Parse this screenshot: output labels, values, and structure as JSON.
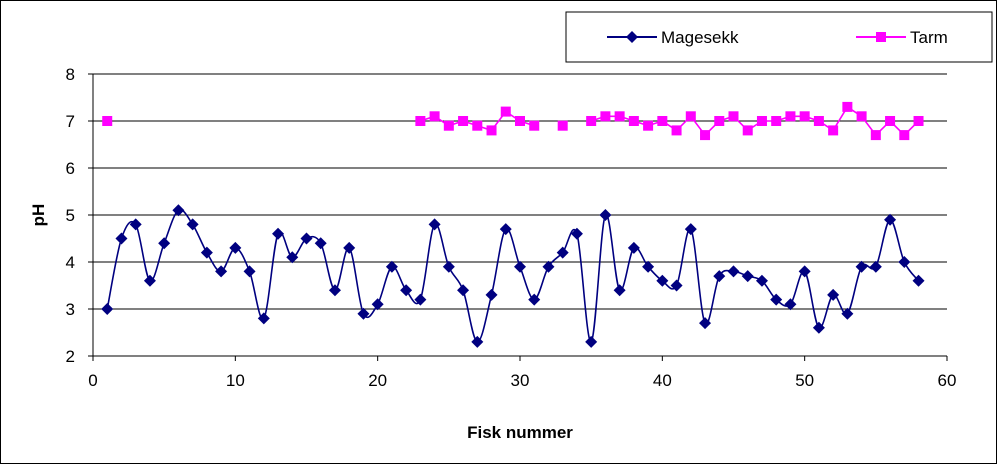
{
  "chart_data": {
    "type": "line",
    "title": "",
    "xlabel": "Fisk nummer",
    "ylabel": "pH",
    "xlim": [
      0,
      60
    ],
    "ylim": [
      2,
      8
    ],
    "x_ticks": [
      "0",
      "10",
      "20",
      "30",
      "40",
      "50",
      "60"
    ],
    "y_ticks": [
      "2",
      "3",
      "4",
      "5",
      "6",
      "7",
      "8"
    ],
    "grid": "horizontal",
    "legend_position": "top-right",
    "series": [
      {
        "name": "Magesekk",
        "color": "#000080",
        "marker": "diamond",
        "smooth": true,
        "points": [
          [
            1,
            3.0
          ],
          [
            2,
            4.5
          ],
          [
            3,
            4.8
          ],
          [
            4,
            3.6
          ],
          [
            5,
            4.4
          ],
          [
            6,
            5.1
          ],
          [
            7,
            4.8
          ],
          [
            8,
            4.2
          ],
          [
            9,
            3.8
          ],
          [
            10,
            4.3
          ],
          [
            11,
            3.8
          ],
          [
            12,
            2.8
          ],
          [
            13,
            4.6
          ],
          [
            14,
            4.1
          ],
          [
            15,
            4.5
          ],
          [
            16,
            4.4
          ],
          [
            17,
            3.4
          ],
          [
            18,
            4.3
          ],
          [
            19,
            2.9
          ],
          [
            20,
            3.1
          ],
          [
            21,
            3.9
          ],
          [
            22,
            3.4
          ],
          [
            23,
            3.2
          ],
          [
            24,
            4.8
          ],
          [
            25,
            3.9
          ],
          [
            26,
            3.4
          ],
          [
            27,
            2.3
          ],
          [
            28,
            3.3
          ],
          [
            29,
            4.7
          ],
          [
            30,
            3.9
          ],
          [
            31,
            3.2
          ],
          [
            32,
            3.9
          ],
          [
            33,
            4.2
          ],
          [
            34,
            4.6
          ],
          [
            35,
            2.3
          ],
          [
            36,
            5.0
          ],
          [
            37,
            3.4
          ],
          [
            38,
            4.3
          ],
          [
            39,
            3.9
          ],
          [
            40,
            3.6
          ],
          [
            41,
            3.5
          ],
          [
            42,
            4.7
          ],
          [
            43,
            2.7
          ],
          [
            44,
            3.7
          ],
          [
            45,
            3.8
          ],
          [
            46,
            3.7
          ],
          [
            47,
            3.6
          ],
          [
            48,
            3.2
          ],
          [
            49,
            3.1
          ],
          [
            50,
            3.8
          ],
          [
            51,
            2.6
          ],
          [
            52,
            3.3
          ],
          [
            53,
            2.9
          ],
          [
            54,
            3.9
          ],
          [
            55,
            3.9
          ],
          [
            56,
            4.9
          ],
          [
            57,
            4.0
          ],
          [
            58,
            3.6
          ]
        ]
      },
      {
        "name": "Tarm",
        "color": "#ff00ff",
        "marker": "square",
        "smooth": false,
        "points": [
          [
            1,
            7.0
          ],
          [
            23,
            7.0
          ],
          [
            24,
            7.1
          ],
          [
            25,
            6.9
          ],
          [
            26,
            7.0
          ],
          [
            27,
            6.9
          ],
          [
            28,
            6.8
          ],
          [
            29,
            7.2
          ],
          [
            30,
            7.0
          ],
          [
            31,
            6.9
          ],
          [
            33,
            6.9
          ],
          [
            35,
            7.0
          ],
          [
            36,
            7.1
          ],
          [
            37,
            7.1
          ],
          [
            38,
            7.0
          ],
          [
            39,
            6.9
          ],
          [
            40,
            7.0
          ],
          [
            41,
            6.8
          ],
          [
            42,
            7.1
          ],
          [
            43,
            6.7
          ],
          [
            44,
            7.0
          ],
          [
            45,
            7.1
          ],
          [
            46,
            6.8
          ],
          [
            47,
            7.0
          ],
          [
            48,
            7.0
          ],
          [
            49,
            7.1
          ],
          [
            50,
            7.1
          ],
          [
            51,
            7.0
          ],
          [
            52,
            6.8
          ],
          [
            53,
            7.3
          ],
          [
            54,
            7.1
          ],
          [
            55,
            6.7
          ],
          [
            56,
            7.0
          ],
          [
            57,
            6.7
          ],
          [
            58,
            7.0
          ]
        ]
      }
    ]
  }
}
